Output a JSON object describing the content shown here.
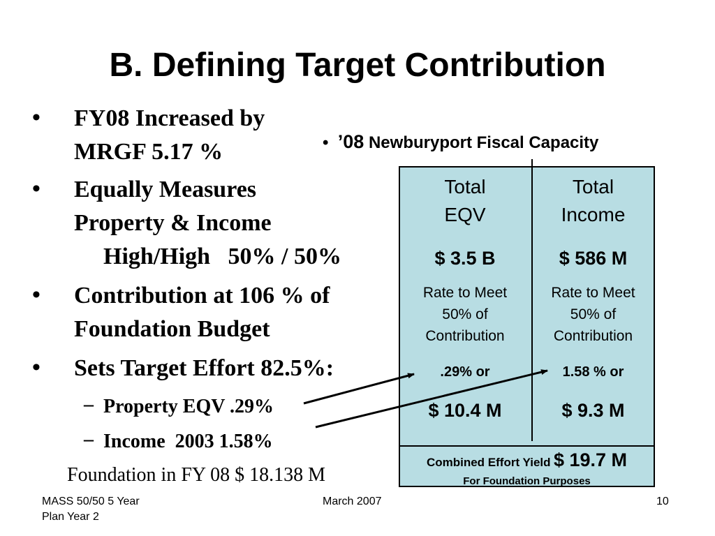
{
  "title": "B. Defining Target Contribution",
  "bullets": [
    {
      "line1": "FY08 Increased by",
      "line2": "MRGF  5.17 %"
    },
    {
      "line1": "Equally Measures",
      "line2": "Property & Income",
      "line3": "High/High   50% / 50%"
    },
    {
      "line1": "Contribution at 106 % of",
      "line2": "Foundation Budget"
    },
    {
      "line1": "Sets Target Effort 82.5%:"
    }
  ],
  "sub_bullets": [
    "Property EQV .29%",
    "Income  2003 1.58%"
  ],
  "foundation_note": "Foundation in FY 08 $ 18.138 M",
  "right_heading": {
    "year": "’08",
    "text": "Newburyport Fiscal Capacity"
  },
  "table": {
    "left": {
      "header1": "Total",
      "header2": "EQV",
      "value": "$ 3.5 B",
      "rate1": "Rate to Meet",
      "rate2": "50% of",
      "rate3": "Contribution",
      "pct": ".29% or",
      "amount": "$ 10.4 M"
    },
    "right": {
      "header1": "Total",
      "header2": "Income",
      "value": "$ 586 M",
      "rate1": "Rate to Meet",
      "rate2": "50% of",
      "rate3": "Contribution",
      "pct": "1.58 % or",
      "amount": "$ 9.3 M"
    },
    "combined_label": "Combined Effort Yield",
    "combined_value": "$ 19.7 M",
    "purpose": "For Foundation Purposes"
  },
  "footer": {
    "left1": "MASS 50/50 5 Year",
    "left2": "Plan Year 2",
    "center": "March 2007",
    "page": "10"
  },
  "colors": {
    "table_fill": "#b8dde3",
    "text": "#000000"
  }
}
